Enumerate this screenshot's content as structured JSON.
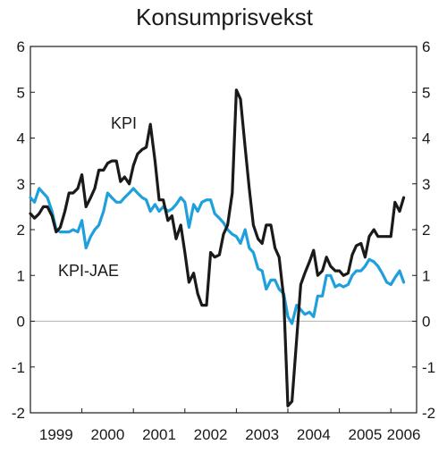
{
  "chart_data": {
    "type": "line",
    "title": "Konsumprisvekst",
    "ylim": [
      -2,
      6
    ],
    "y_ticks": [
      "-2",
      "-1",
      "0",
      "1",
      "2",
      "3",
      "4",
      "5",
      "6"
    ],
    "x_range": [
      1999,
      2006.5
    ],
    "x_tick_labels": [
      "1999",
      "2000",
      "2001",
      "2002",
      "2003",
      "2004",
      "2005",
      "2006"
    ],
    "right_axis": true,
    "grid": false,
    "zero_line": true,
    "annotations": [
      "KPI",
      "KPI-JAE"
    ],
    "colors": {
      "KPI": "#1a1a1a",
      "KPI-JAE": "#1fa0dc",
      "zero_line": "#b5b5b5"
    },
    "series": [
      {
        "name": "KPI",
        "points": [
          [
            1999.0,
            2.35
          ],
          [
            1999.08,
            2.25
          ],
          [
            1999.17,
            2.35
          ],
          [
            1999.25,
            2.5
          ],
          [
            1999.33,
            2.5
          ],
          [
            1999.42,
            2.3
          ],
          [
            1999.5,
            1.95
          ],
          [
            1999.58,
            2.05
          ],
          [
            1999.67,
            2.4
          ],
          [
            1999.75,
            2.8
          ],
          [
            1999.83,
            2.8
          ],
          [
            1999.92,
            2.9
          ],
          [
            2000.0,
            3.2
          ],
          [
            2000.08,
            2.5
          ],
          [
            2000.17,
            2.7
          ],
          [
            2000.25,
            2.9
          ],
          [
            2000.33,
            3.3
          ],
          [
            2000.42,
            3.3
          ],
          [
            2000.5,
            3.45
          ],
          [
            2000.58,
            3.5
          ],
          [
            2000.67,
            3.5
          ],
          [
            2000.75,
            3.05
          ],
          [
            2000.83,
            3.15
          ],
          [
            2000.92,
            3.0
          ],
          [
            2001.0,
            3.4
          ],
          [
            2001.08,
            3.65
          ],
          [
            2001.17,
            3.75
          ],
          [
            2001.25,
            3.8
          ],
          [
            2001.33,
            4.3
          ],
          [
            2001.42,
            3.5
          ],
          [
            2001.5,
            2.65
          ],
          [
            2001.58,
            2.65
          ],
          [
            2001.67,
            2.2
          ],
          [
            2001.75,
            2.3
          ],
          [
            2001.83,
            1.8
          ],
          [
            2001.92,
            2.1
          ],
          [
            2002.0,
            1.5
          ],
          [
            2002.08,
            0.85
          ],
          [
            2002.17,
            1.05
          ],
          [
            2002.25,
            0.6
          ],
          [
            2002.33,
            0.35
          ],
          [
            2002.42,
            0.35
          ],
          [
            2002.5,
            1.5
          ],
          [
            2002.58,
            1.4
          ],
          [
            2002.67,
            1.45
          ],
          [
            2002.75,
            1.9
          ],
          [
            2002.83,
            2.1
          ],
          [
            2002.92,
            2.8
          ],
          [
            2003.0,
            5.05
          ],
          [
            2003.08,
            4.85
          ],
          [
            2003.17,
            3.8
          ],
          [
            2003.25,
            2.9
          ],
          [
            2003.33,
            2.1
          ],
          [
            2003.42,
            1.8
          ],
          [
            2003.5,
            1.7
          ],
          [
            2003.58,
            2.1
          ],
          [
            2003.67,
            2.1
          ],
          [
            2003.75,
            1.6
          ],
          [
            2003.83,
            1.4
          ],
          [
            2003.92,
            0.5
          ],
          [
            2004.0,
            -1.85
          ],
          [
            2004.08,
            -1.75
          ],
          [
            2004.17,
            -0.4
          ],
          [
            2004.25,
            0.8
          ],
          [
            2004.33,
            1.05
          ],
          [
            2004.42,
            1.3
          ],
          [
            2004.5,
            1.55
          ],
          [
            2004.58,
            1.0
          ],
          [
            2004.67,
            1.1
          ],
          [
            2004.75,
            1.4
          ],
          [
            2004.83,
            1.2
          ],
          [
            2004.92,
            1.1
          ],
          [
            2005.0,
            1.1
          ],
          [
            2005.08,
            1.0
          ],
          [
            2005.17,
            1.05
          ],
          [
            2005.25,
            1.45
          ],
          [
            2005.33,
            1.65
          ],
          [
            2005.42,
            1.7
          ],
          [
            2005.5,
            1.4
          ],
          [
            2005.58,
            1.85
          ],
          [
            2005.67,
            2.0
          ],
          [
            2005.75,
            1.85
          ],
          [
            2005.83,
            1.85
          ],
          [
            2005.92,
            1.85
          ],
          [
            2006.0,
            1.85
          ],
          [
            2006.08,
            2.6
          ],
          [
            2006.17,
            2.4
          ],
          [
            2006.25,
            2.7
          ]
        ]
      },
      {
        "name": "KPI-JAE",
        "points": [
          [
            1999.0,
            2.7
          ],
          [
            1999.08,
            2.6
          ],
          [
            1999.17,
            2.9
          ],
          [
            1999.25,
            2.8
          ],
          [
            1999.33,
            2.7
          ],
          [
            1999.42,
            2.4
          ],
          [
            1999.5,
            2.0
          ],
          [
            1999.58,
            1.95
          ],
          [
            1999.67,
            1.95
          ],
          [
            1999.75,
            1.95
          ],
          [
            1999.83,
            2.0
          ],
          [
            1999.92,
            1.95
          ],
          [
            2000.0,
            2.2
          ],
          [
            2000.08,
            1.6
          ],
          [
            2000.17,
            1.85
          ],
          [
            2000.25,
            2.0
          ],
          [
            2000.33,
            2.1
          ],
          [
            2000.42,
            2.4
          ],
          [
            2000.5,
            2.8
          ],
          [
            2000.58,
            2.7
          ],
          [
            2000.67,
            2.6
          ],
          [
            2000.75,
            2.6
          ],
          [
            2000.83,
            2.7
          ],
          [
            2000.92,
            2.8
          ],
          [
            2001.0,
            2.9
          ],
          [
            2001.08,
            2.8
          ],
          [
            2001.17,
            2.7
          ],
          [
            2001.25,
            2.65
          ],
          [
            2001.33,
            2.4
          ],
          [
            2001.42,
            2.55
          ],
          [
            2001.5,
            2.4
          ],
          [
            2001.58,
            2.5
          ],
          [
            2001.67,
            2.4
          ],
          [
            2001.75,
            2.45
          ],
          [
            2001.83,
            2.55
          ],
          [
            2001.92,
            2.7
          ],
          [
            2002.0,
            2.6
          ],
          [
            2002.08,
            2.05
          ],
          [
            2002.17,
            2.55
          ],
          [
            2002.25,
            2.4
          ],
          [
            2002.33,
            2.6
          ],
          [
            2002.42,
            2.65
          ],
          [
            2002.5,
            2.65
          ],
          [
            2002.58,
            2.35
          ],
          [
            2002.67,
            2.25
          ],
          [
            2002.75,
            2.15
          ],
          [
            2002.83,
            2.0
          ],
          [
            2002.92,
            1.9
          ],
          [
            2003.0,
            1.85
          ],
          [
            2003.08,
            1.7
          ],
          [
            2003.17,
            2.0
          ],
          [
            2003.25,
            1.6
          ],
          [
            2003.33,
            1.5
          ],
          [
            2003.42,
            1.15
          ],
          [
            2003.5,
            1.1
          ],
          [
            2003.58,
            0.7
          ],
          [
            2003.67,
            0.9
          ],
          [
            2003.75,
            0.9
          ],
          [
            2003.83,
            0.7
          ],
          [
            2003.92,
            0.6
          ],
          [
            2004.0,
            0.1
          ],
          [
            2004.08,
            -0.05
          ],
          [
            2004.17,
            0.35
          ],
          [
            2004.25,
            0.25
          ],
          [
            2004.33,
            0.15
          ],
          [
            2004.42,
            0.2
          ],
          [
            2004.5,
            0.1
          ],
          [
            2004.58,
            0.55
          ],
          [
            2004.67,
            0.55
          ],
          [
            2004.75,
            1.0
          ],
          [
            2004.83,
            1.0
          ],
          [
            2004.92,
            0.75
          ],
          [
            2005.0,
            0.8
          ],
          [
            2005.08,
            0.75
          ],
          [
            2005.17,
            0.8
          ],
          [
            2005.25,
            1.0
          ],
          [
            2005.33,
            1.1
          ],
          [
            2005.42,
            1.1
          ],
          [
            2005.5,
            1.2
          ],
          [
            2005.58,
            1.35
          ],
          [
            2005.67,
            1.3
          ],
          [
            2005.75,
            1.2
          ],
          [
            2005.83,
            1.05
          ],
          [
            2005.92,
            0.85
          ],
          [
            2006.0,
            0.8
          ],
          [
            2006.08,
            0.95
          ],
          [
            2006.17,
            1.1
          ],
          [
            2006.25,
            0.85
          ]
        ]
      }
    ]
  }
}
